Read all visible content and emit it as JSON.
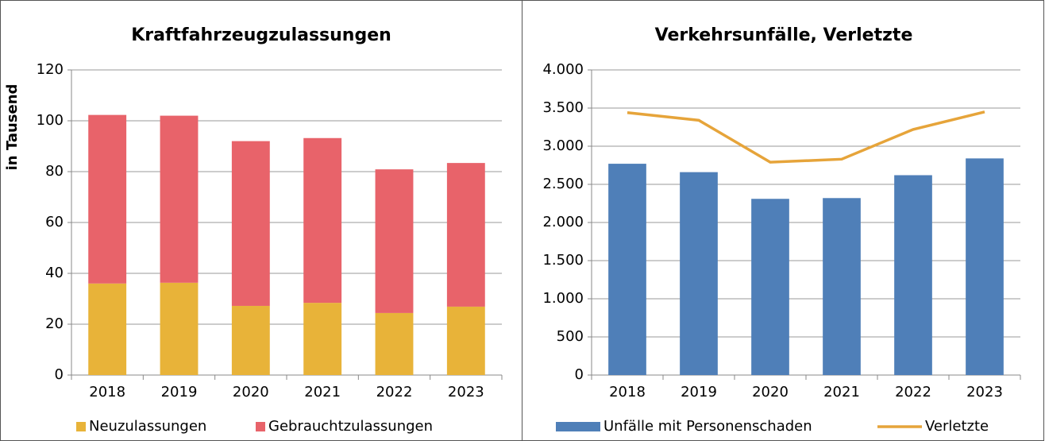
{
  "chart_data": [
    {
      "type": "bar",
      "stacked": true,
      "title": "Kraftfahrzeugzulassungen",
      "ylabel": "in Tausend",
      "categories": [
        "2018",
        "2019",
        "2020",
        "2021",
        "2022",
        "2023"
      ],
      "series": [
        {
          "name": "Neuzulassungen",
          "color": "#e8b339",
          "values": [
            36,
            36.3,
            27.2,
            28.4,
            24.4,
            26.9
          ]
        },
        {
          "name": "Gebrauchtzulassungen",
          "color": "#e8636a",
          "values": [
            66.3,
            65.7,
            64.8,
            64.8,
            56.5,
            56.5
          ]
        }
      ],
      "ylim": [
        0,
        120
      ],
      "yticks": [
        0,
        20,
        40,
        60,
        80,
        100,
        120
      ],
      "grid": true
    },
    {
      "type": "combo",
      "title": "Verkehrsunfälle, Verletzte",
      "categories": [
        "2018",
        "2019",
        "2020",
        "2021",
        "2022",
        "2023"
      ],
      "series": [
        {
          "name": "Unfälle mit Personenschaden",
          "type": "bar",
          "color": "#4f7fb8",
          "values": [
            2770,
            2660,
            2310,
            2320,
            2620,
            2840
          ]
        },
        {
          "name": "Verletzte",
          "type": "line",
          "color": "#e6a43a",
          "values": [
            3440,
            3340,
            2790,
            2830,
            3220,
            3450
          ]
        }
      ],
      "ylim": [
        0,
        4000
      ],
      "yticks": [
        0,
        500,
        {
          "value": 1000,
          "label": "1.000"
        },
        {
          "value": 1500,
          "label": "1.500"
        },
        {
          "value": 2000,
          "label": "2.000"
        },
        {
          "value": 2500,
          "label": "2.500"
        },
        {
          "value": 3000,
          "label": "3.000"
        },
        {
          "value": 3500,
          "label": "3.500"
        },
        {
          "value": 4000,
          "label": "4.000"
        }
      ],
      "grid": true
    }
  ]
}
